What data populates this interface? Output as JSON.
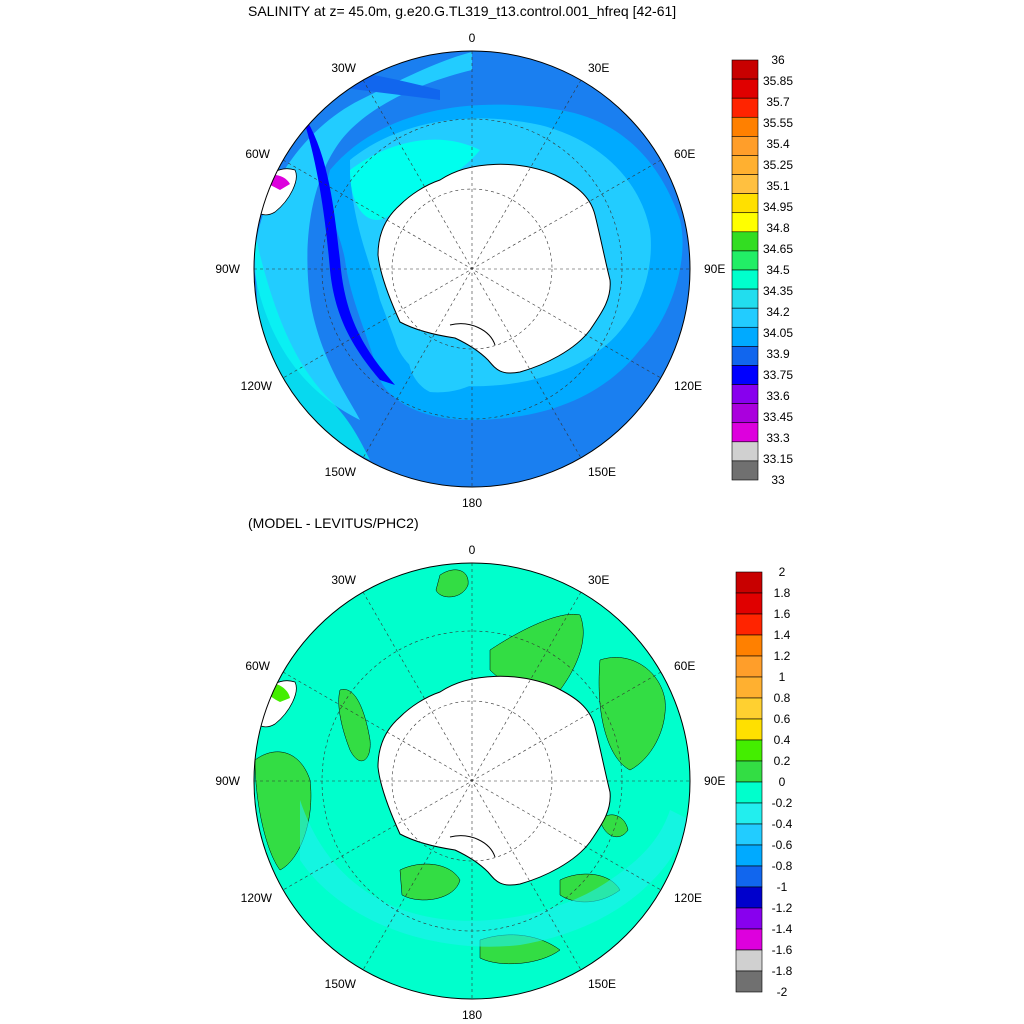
{
  "panels": [
    {
      "id": "salinity",
      "title": "SALINITY at z=  45.0m, g.e20.G.TL319_t13.control.001_hfreq [42-61]",
      "lon_labels": {
        "top": "0",
        "bottom": "180",
        "left": "90W",
        "right": "90E",
        "upper_left_30": "30W",
        "upper_right_30": "30E",
        "upper_left_60": "60W",
        "upper_right_60": "60E",
        "lower_left_120": "120W",
        "lower_right_120": "120E",
        "lower_left_150": "150W",
        "lower_right_150": "150E"
      },
      "colorbar": {
        "labels": [
          "36",
          "35.85",
          "35.7",
          "35.55",
          "35.4",
          "35.25",
          "35.1",
          "34.95",
          "34.8",
          "34.65",
          "34.5",
          "34.35",
          "34.2",
          "34.05",
          "33.9",
          "33.75",
          "33.6",
          "33.45",
          "33.3",
          "33.15",
          "33"
        ],
        "colors": [
          "#c80000",
          "#e00000",
          "#ff2400",
          "#ff8000",
          "#ff9e2a",
          "#ffb030",
          "#ffc040",
          "#ffe000",
          "#ffff00",
          "#33dd22",
          "#22ee66",
          "#00ffcc",
          "#22ddee",
          "#22ccff",
          "#00aaff",
          "#1166ee",
          "#0000ff",
          "#8800ee",
          "#aa00dd",
          "#dd00dd",
          "#d0d0d0",
          "#707070"
        ]
      }
    },
    {
      "id": "difference",
      "title": "(MODEL - LEVITUS/PHC2)",
      "lon_labels": {
        "top": "0",
        "bottom": "180",
        "left": "90W",
        "right": "90E",
        "upper_left_30": "30W",
        "upper_right_30": "30E",
        "upper_left_60": "60W",
        "upper_right_60": "60E",
        "lower_left_120": "120W",
        "lower_right_120": "120E",
        "lower_left_150": "150W",
        "lower_right_150": "150E"
      },
      "colorbar": {
        "labels": [
          "2",
          "1.8",
          "1.6",
          "1.4",
          "1.2",
          "1",
          "0.8",
          "0.6",
          "0.4",
          "0.2",
          "0",
          "-0.2",
          "-0.4",
          "-0.6",
          "-0.8",
          "-1",
          "-1.2",
          "-1.4",
          "-1.6",
          "-1.8",
          "-2"
        ],
        "colors": [
          "#c80000",
          "#e00000",
          "#ff2400",
          "#ff8000",
          "#ff9e2a",
          "#ffb030",
          "#ffd030",
          "#ffe000",
          "#44ee00",
          "#33dd44",
          "#00ffcc",
          "#22eeee",
          "#22ccff",
          "#00aaff",
          "#1166ee",
          "#0000cc",
          "#8800ee",
          "#dd00dd",
          "#d0d0d0",
          "#707070"
        ]
      }
    }
  ]
}
